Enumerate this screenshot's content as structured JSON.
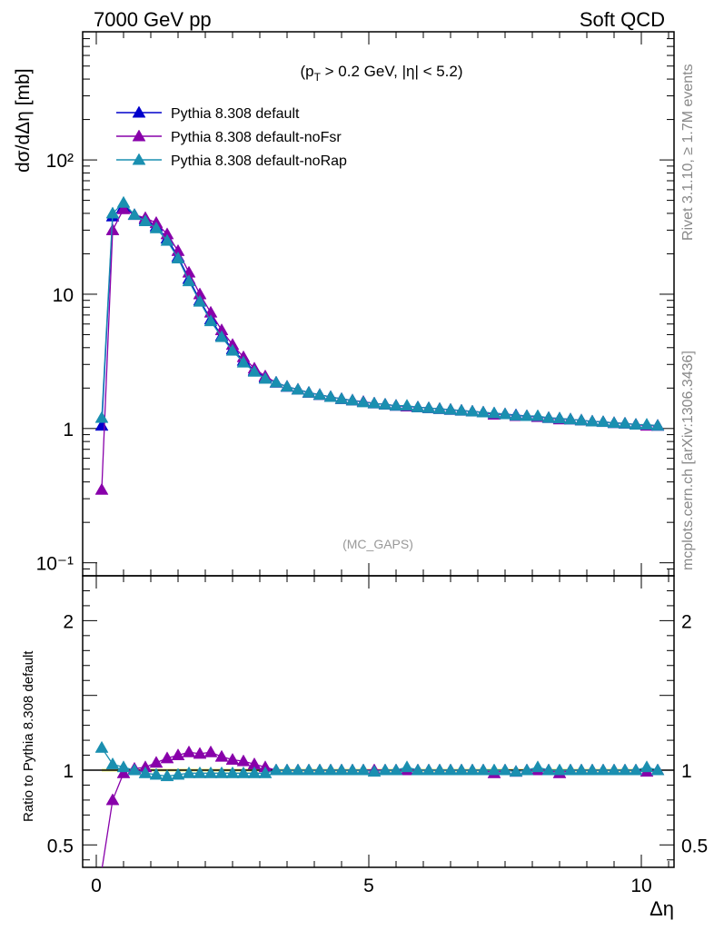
{
  "header": {
    "left": "7000 GeV pp",
    "right": "Soft QCD"
  },
  "annotation": {
    "cuts": "(p_T > 0.2 GeV, |η| < 5.2)",
    "watermark": "(MC_GAPS)"
  },
  "side_labels": {
    "rivet": "Rivet 3.1.10, ≥ 1.7M events",
    "mcplots": "mcplots.cern.ch [arXiv:1306.3436]"
  },
  "colors": {
    "default": "#0000cc",
    "noFsr": "#8800aa",
    "noRap": "#1a8fb0",
    "band": "#e8f060",
    "refline": "#000000"
  },
  "chart_data": [
    {
      "type": "line",
      "panel": "main",
      "ylabel": "dσ/dΔη [mb]",
      "xlabel": "",
      "yscale": "log",
      "xlim": [
        -0.25,
        10.6
      ],
      "ylim": [
        0.08,
        900
      ],
      "yticks": [
        {
          "v": 0.1,
          "label": "10⁻¹"
        },
        {
          "v": 1,
          "label": "1"
        },
        {
          "v": 10,
          "label": "10"
        },
        {
          "v": 100,
          "label": "10²"
        }
      ],
      "legend_position": "top-left",
      "x": [
        0.1,
        0.3,
        0.5,
        0.7,
        0.9,
        1.1,
        1.3,
        1.5,
        1.7,
        1.9,
        2.1,
        2.3,
        2.5,
        2.7,
        2.9,
        3.1,
        3.3,
        3.5,
        3.7,
        3.9,
        4.1,
        4.3,
        4.5,
        4.7,
        4.9,
        5.1,
        5.3,
        5.5,
        5.7,
        5.9,
        6.1,
        6.3,
        6.5,
        6.7,
        6.9,
        7.1,
        7.3,
        7.5,
        7.7,
        7.9,
        8.1,
        8.3,
        8.5,
        8.7,
        8.9,
        9.1,
        9.3,
        9.5,
        9.7,
        9.9,
        10.1,
        10.3
      ],
      "series": [
        {
          "name": "Pythia 8.308 default",
          "color_key": "default",
          "values": [
            1.05,
            38,
            45,
            39,
            36,
            32,
            26,
            19,
            13,
            9,
            6.5,
            4.9,
            3.9,
            3.2,
            2.7,
            2.4,
            2.2,
            2.05,
            1.95,
            1.85,
            1.78,
            1.72,
            1.66,
            1.62,
            1.58,
            1.54,
            1.51,
            1.48,
            1.46,
            1.44,
            1.42,
            1.4,
            1.38,
            1.36,
            1.34,
            1.32,
            1.3,
            1.28,
            1.26,
            1.24,
            1.22,
            1.2,
            1.19,
            1.17,
            1.15,
            1.13,
            1.12,
            1.1,
            1.09,
            1.07,
            1.06,
            1.05
          ]
        },
        {
          "name": "Pythia 8.308 default-noFsr",
          "color_key": "noFsr",
          "values": [
            0.35,
            30,
            43,
            39,
            37,
            34,
            28,
            21,
            14.5,
            10,
            7.3,
            5.4,
            4.2,
            3.4,
            2.8,
            2.45,
            2.2,
            2.05,
            1.95,
            1.85,
            1.78,
            1.72,
            1.66,
            1.62,
            1.58,
            1.54,
            1.51,
            1.48,
            1.46,
            1.44,
            1.42,
            1.4,
            1.38,
            1.36,
            1.34,
            1.32,
            1.27,
            1.28,
            1.24,
            1.24,
            1.22,
            1.2,
            1.17,
            1.17,
            1.15,
            1.13,
            1.12,
            1.1,
            1.09,
            1.07,
            1.05,
            1.05
          ]
        },
        {
          "name": "Pythia 8.308 default-noRap",
          "color_key": "noRap",
          "values": [
            1.2,
            40,
            48,
            39,
            35,
            31,
            25,
            18.5,
            12.5,
            8.8,
            6.3,
            4.8,
            3.8,
            3.1,
            2.65,
            2.35,
            2.2,
            2.05,
            1.95,
            1.85,
            1.78,
            1.72,
            1.66,
            1.62,
            1.57,
            1.54,
            1.51,
            1.48,
            1.48,
            1.44,
            1.42,
            1.4,
            1.38,
            1.36,
            1.34,
            1.32,
            1.3,
            1.28,
            1.25,
            1.24,
            1.24,
            1.2,
            1.19,
            1.17,
            1.15,
            1.13,
            1.12,
            1.1,
            1.09,
            1.07,
            1.07,
            1.05
          ]
        }
      ]
    },
    {
      "type": "line",
      "panel": "ratio",
      "ylabel": "Ratio to Pythia 8.308 default",
      "xlabel": "Δη",
      "yscale": "linear",
      "xlim": [
        -0.25,
        10.6
      ],
      "ylim": [
        0.35,
        2.3
      ],
      "xticks": [
        0,
        5,
        10
      ],
      "yticks": [
        0.5,
        1,
        2
      ],
      "x": [
        0.1,
        0.3,
        0.5,
        0.7,
        0.9,
        1.1,
        1.3,
        1.5,
        1.7,
        1.9,
        2.1,
        2.3,
        2.5,
        2.7,
        2.9,
        3.1,
        3.3,
        3.5,
        3.7,
        3.9,
        4.1,
        4.3,
        4.5,
        4.7,
        4.9,
        5.1,
        5.3,
        5.5,
        5.7,
        5.9,
        6.1,
        6.3,
        6.5,
        6.7,
        6.9,
        7.1,
        7.3,
        7.5,
        7.7,
        7.9,
        8.1,
        8.3,
        8.5,
        8.7,
        8.9,
        9.1,
        9.3,
        9.5,
        9.7,
        9.9,
        10.1,
        10.3
      ],
      "series": [
        {
          "name": "Pythia 8.308 default-noFsr",
          "color_key": "noFsr",
          "values": [
            0.33,
            0.8,
            0.98,
            1.01,
            1.02,
            1.05,
            1.08,
            1.1,
            1.12,
            1.11,
            1.12,
            1.09,
            1.07,
            1.06,
            1.04,
            1.02,
            1.0,
            1.0,
            1.0,
            1.0,
            1.0,
            1.0,
            1.0,
            1.0,
            1.0,
            1.0,
            1.0,
            1.0,
            1.0,
            1.0,
            1.0,
            1.0,
            1.0,
            1.0,
            1.0,
            1.0,
            0.98,
            1.0,
            0.99,
            1.0,
            1.0,
            1.0,
            0.98,
            1.0,
            1.0,
            1.0,
            1.0,
            1.0,
            1.0,
            1.0,
            0.99,
            1.0
          ]
        },
        {
          "name": "Pythia 8.308 default-noRap",
          "color_key": "noRap",
          "values": [
            1.15,
            1.04,
            1.02,
            1.0,
            0.98,
            0.97,
            0.96,
            0.97,
            0.98,
            0.98,
            0.98,
            0.98,
            0.98,
            0.98,
            0.98,
            0.98,
            1.0,
            1.0,
            1.0,
            1.0,
            1.0,
            1.0,
            1.0,
            1.0,
            1.0,
            0.99,
            1.0,
            1.0,
            1.02,
            1.0,
            1.0,
            1.0,
            1.0,
            1.0,
            1.0,
            1.0,
            1.0,
            1.0,
            0.99,
            1.0,
            1.02,
            1.0,
            1.0,
            1.0,
            1.0,
            1.0,
            1.0,
            1.0,
            1.0,
            1.0,
            1.02,
            1.0
          ]
        }
      ]
    }
  ]
}
